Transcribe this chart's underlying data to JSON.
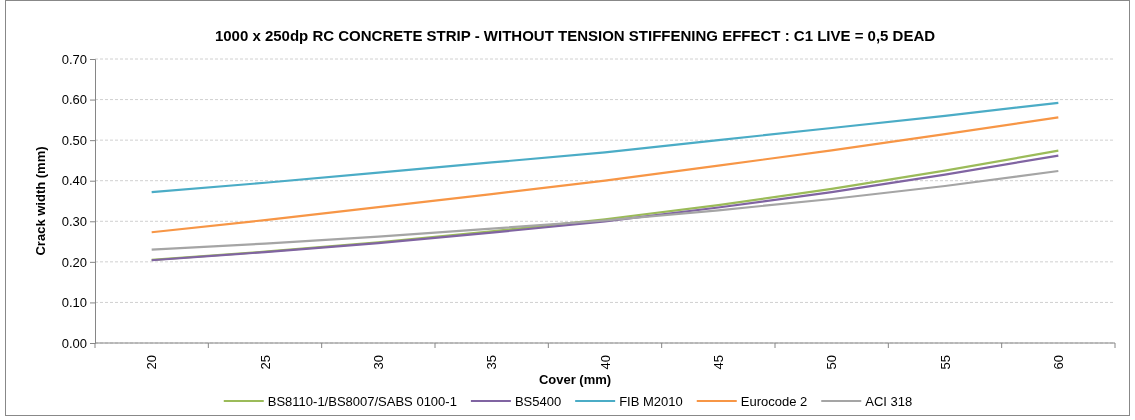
{
  "chart_data": {
    "type": "line",
    "title": "1000 x 250dp RC CONCRETE STRIP - WITHOUT TENSION STIFFENING EFFECT : C1 LIVE = 0,5 DEAD",
    "xlabel": "Cover (mm)",
    "ylabel": "Crack width (mm)",
    "categories": [
      "20",
      "25",
      "30",
      "35",
      "40",
      "45",
      "50",
      "55",
      "60"
    ],
    "series": [
      {
        "name": "BS8110-1/BS8007/SABS 0100-1",
        "color": "#9bbb59",
        "values": [
          0.205,
          0.225,
          0.248,
          0.275,
          0.305,
          0.34,
          0.38,
          0.425,
          0.474
        ]
      },
      {
        "name": "BS5400",
        "color": "#8064a2",
        "values": [
          0.204,
          0.224,
          0.246,
          0.272,
          0.3,
          0.334,
          0.372,
          0.415,
          0.462
        ]
      },
      {
        "name": "FIB M2010",
        "color": "#4bacc6",
        "values": [
          0.372,
          0.395,
          0.42,
          0.445,
          0.47,
          0.5,
          0.53,
          0.56,
          0.592
        ]
      },
      {
        "name": "Eurocode 2",
        "color": "#f79646",
        "values": [
          0.273,
          0.303,
          0.335,
          0.367,
          0.4,
          0.437,
          0.475,
          0.515,
          0.556
        ]
      },
      {
        "name": "ACI 318",
        "color": "#a5a5a5",
        "values": [
          0.23,
          0.245,
          0.262,
          0.282,
          0.302,
          0.327,
          0.355,
          0.387,
          0.424
        ]
      }
    ],
    "ylim": [
      0,
      0.7
    ],
    "yticks": [
      {
        "value": 0,
        "label": "0.00"
      },
      {
        "value": 0.1,
        "label": "0.10"
      },
      {
        "value": 0.2,
        "label": "0.20"
      },
      {
        "value": 0.3,
        "label": "0.30"
      },
      {
        "value": 0.4,
        "label": "0.40"
      },
      {
        "value": 0.5,
        "label": "0.50"
      },
      {
        "value": 0.6,
        "label": "0.60"
      },
      {
        "value": 0.7,
        "label": "0.70"
      }
    ],
    "grid": "y",
    "legend": "bottom",
    "marker": "none",
    "line_style": "solid"
  }
}
